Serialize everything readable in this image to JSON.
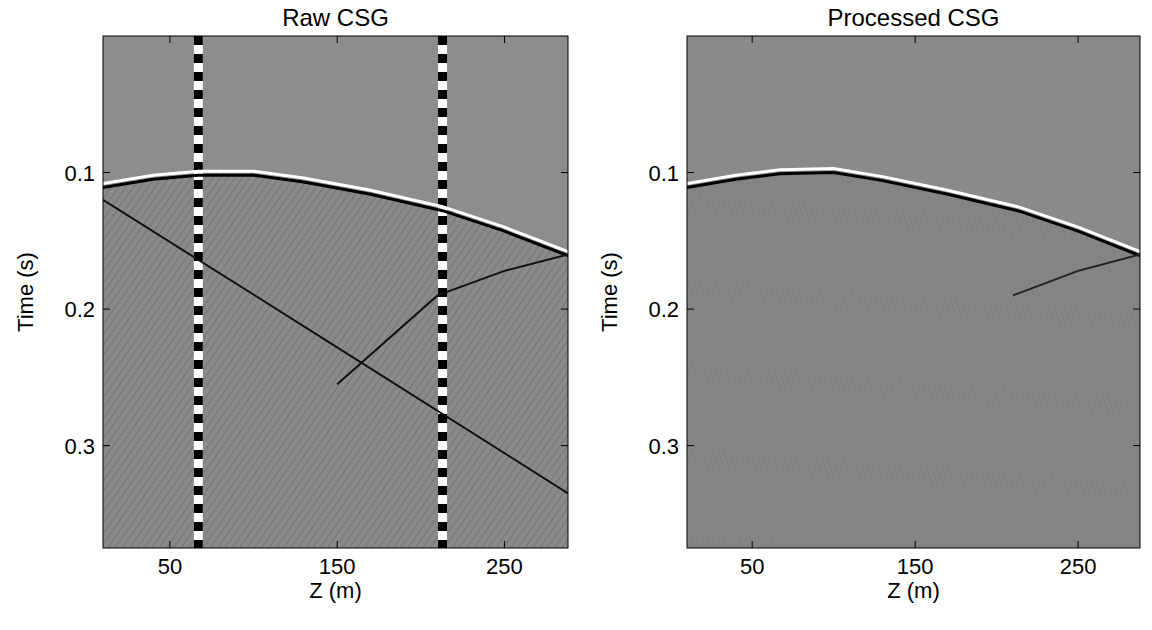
{
  "chart_data": [
    {
      "type": "seismic_image",
      "title": "Raw CSG",
      "x_label": "Z (m)",
      "y_label": "Time (s)",
      "xlim": [
        10,
        288
      ],
      "ylim": [
        0,
        0.375
      ],
      "xticks": [
        50,
        150,
        250
      ],
      "yticks": [
        0.1,
        0.2,
        0.3
      ],
      "series": [
        {
          "color": "#ffffff",
          "x": [
            10,
            40,
            67,
            100,
            130,
            170,
            213,
            250,
            288
          ],
          "values": [
            0.108,
            0.102,
            0.099,
            0.099,
            0.104,
            0.113,
            0.125,
            0.14,
            0.158
          ]
        },
        {
          "color": "#111111",
          "x": [
            10,
            150,
            288
          ],
          "values": [
            0.12,
            0.228,
            0.335
          ]
        },
        {
          "color": "#111111",
          "x": [
            150,
            210,
            250,
            288
          ],
          "values": [
            0.255,
            0.19,
            0.172,
            0.16
          ]
        }
      ],
      "bad_traces": [
        67,
        213
      ]
    },
    {
      "type": "seismic_image",
      "title": "Processed CSG",
      "x_label": "Z (m)",
      "y_label": "Time (s)",
      "xlim": [
        10,
        288
      ],
      "ylim": [
        0,
        0.375
      ],
      "xticks": [
        50,
        150,
        250
      ],
      "yticks": [
        0.1,
        0.2,
        0.3
      ],
      "series": [
        {
          "color": "#ffffff",
          "x": [
            10,
            40,
            67,
            100,
            130,
            170,
            213,
            250,
            288
          ],
          "values": [
            0.108,
            0.102,
            0.098,
            0.097,
            0.103,
            0.113,
            0.125,
            0.14,
            0.158
          ]
        },
        {
          "color": "#222222",
          "x": [
            210,
            250,
            288
          ],
          "values": [
            0.19,
            0.172,
            0.16
          ]
        }
      ]
    }
  ]
}
